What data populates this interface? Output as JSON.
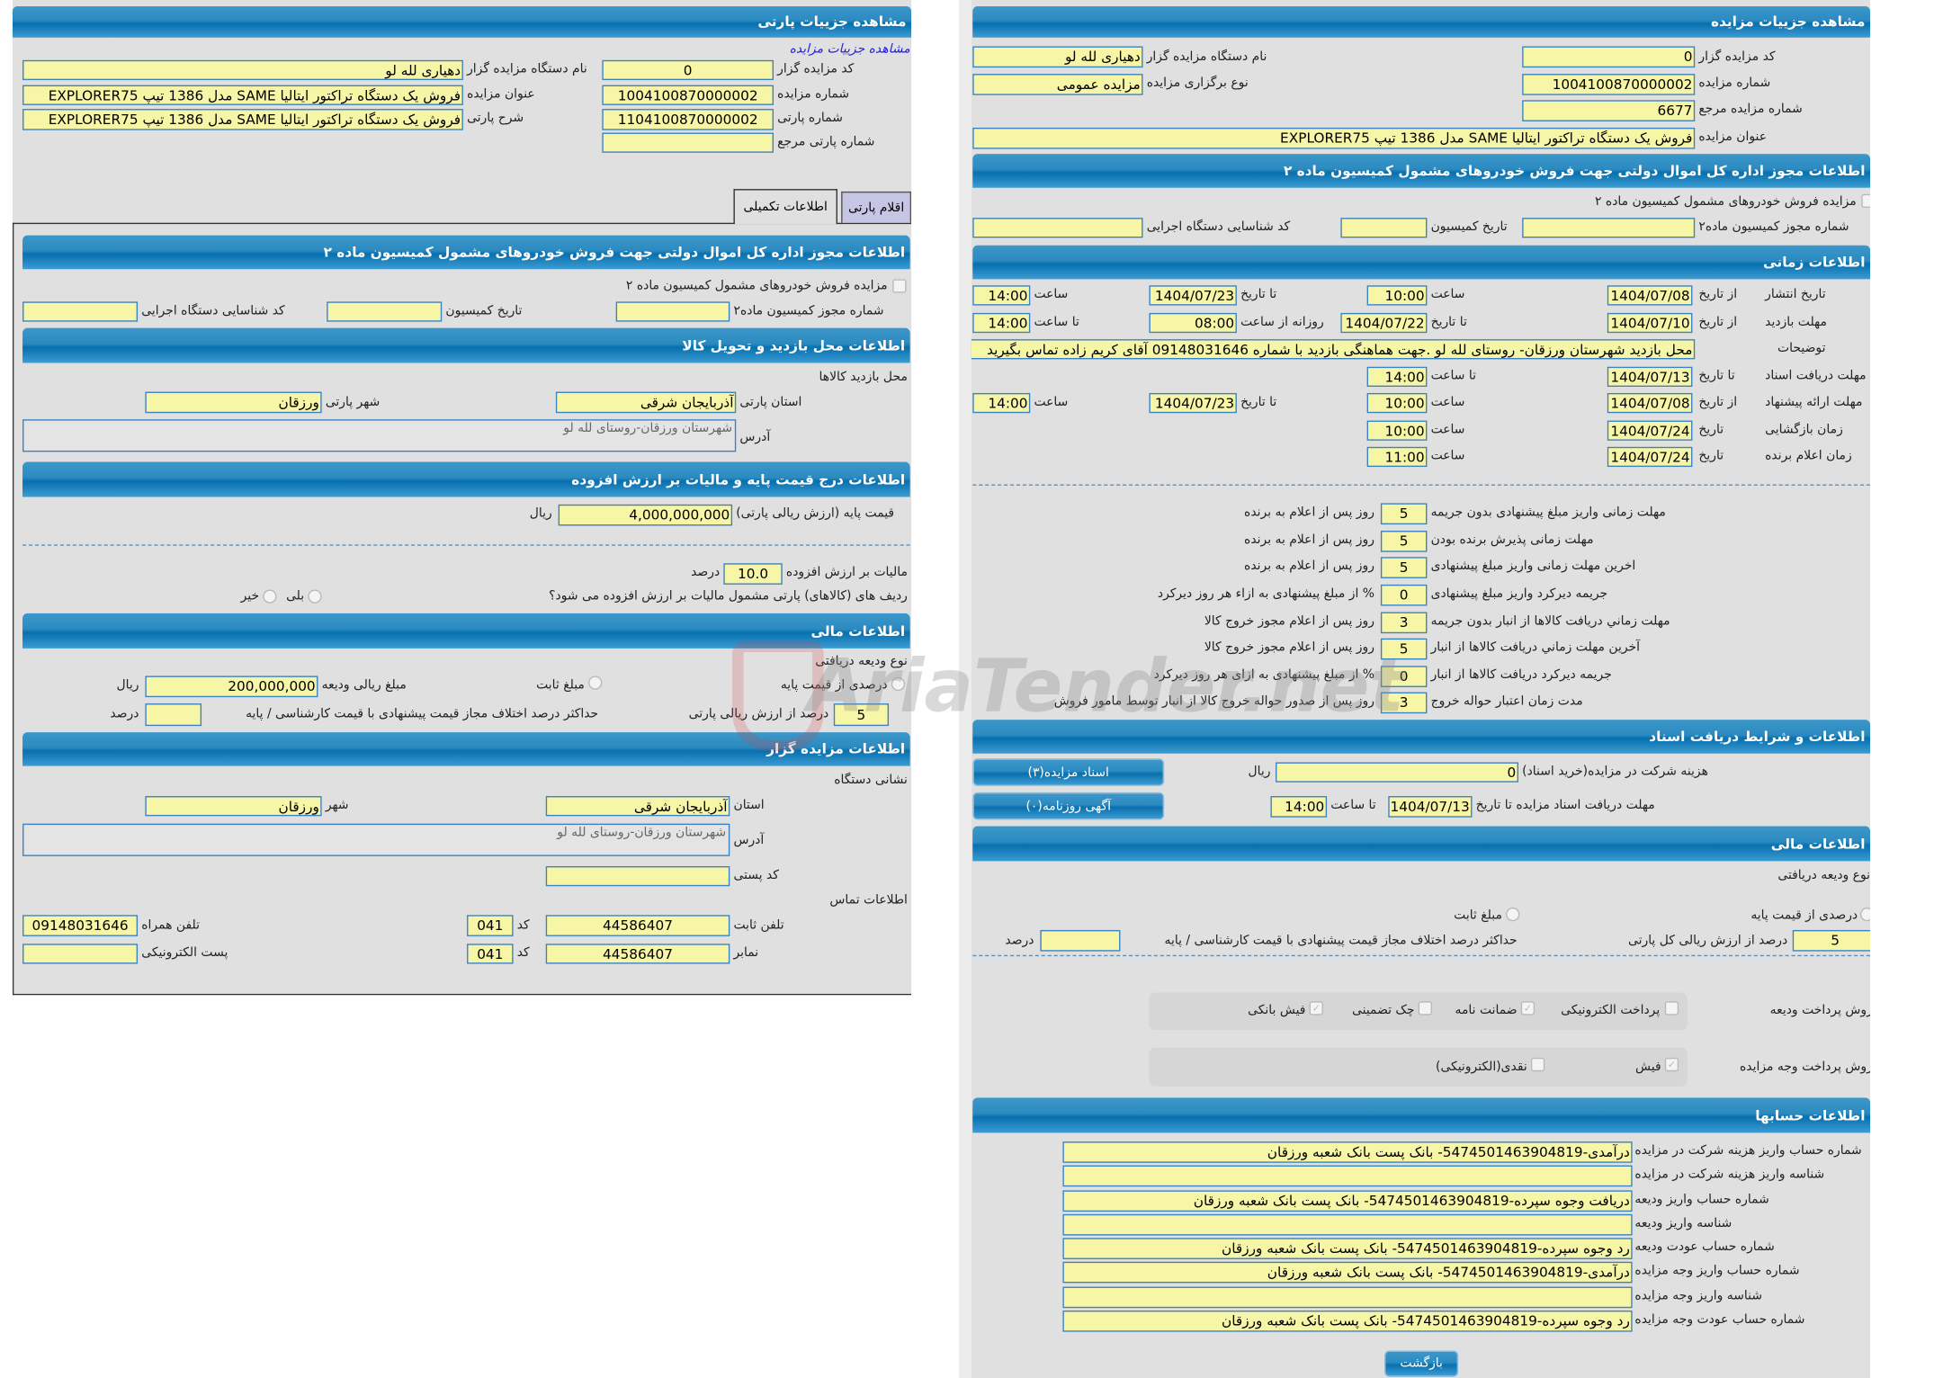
{
  "watermark": "AriaTender.net",
  "colors": {
    "header": "#0770ae",
    "field_bg": "#f7f5a6",
    "field_border": "#3b82c4",
    "panel_bg": "#e1e0e1"
  },
  "party": {
    "title": "مشاهده جزییات پارتی",
    "auction_link": "مشاهده جزییات مزایده",
    "f": {
      "code_label": "کد مزایده گزار",
      "code": "0",
      "org_label": "نام دستگاه مزایده گزار",
      "org": "دهیاری لله لو",
      "auction_no_label": "شماره مزایده",
      "auction_no": "1004100870000002",
      "title_label": "عنوان مزایده",
      "title": "فروش یک دستگاه تراکتور ایتالیا SAME مدل 1386 تیپ EXPLORER75",
      "party_no_label": "شماره پارتی",
      "party_no": "1104100870000002",
      "desc_label": "شرح پارتی",
      "desc": "فروش یک دستگاه تراکتور ایتالیا SAME مدل 1386 تیپ EXPLORER75",
      "ref_label": "شماره پارتی مرجع",
      "ref": ""
    },
    "tabs": [
      {
        "label": "اقلام پارتی",
        "active": false
      },
      {
        "label": "اطلاعات تکمیلی",
        "active": true
      }
    ],
    "permit": {
      "title": "اطلاعات مجوز اداره کل اموال دولتی جهت فروش خودروهای مشمول کمیسیون ماده ۲",
      "checkbox_label": "مزایده فروش خودروهای مشمول کمیسیون ماده ۲",
      "permit_no_label": "شماره مجوز کمیسیون ماده۲",
      "permit_no": "",
      "date_label": "تاریخ کمیسیون",
      "date": "",
      "org_id_label": "کد شناسایی دستگاه اجرایی",
      "org_id": ""
    },
    "visit": {
      "title": "اطلاعات محل بازدید و تحویل کالا",
      "place_label": "محل بازدید کالاها",
      "province_label": "استان پارتی",
      "province": "آذربایجان شرقی",
      "city_label": "شهر پارتی",
      "city": "ورزقان",
      "address_label": "آدرس",
      "address": "شهرستان ورزقان-روستای لله لو"
    },
    "price": {
      "title": "اطلاعات درج قیمت پایه و مالیات بر ارزش افزوده",
      "base_label": "قیمت پایه (ارزش ریالی پارتی)",
      "base": "4,000,000,000",
      "rial": "ریال",
      "vat_label": "مالیات بر ارزش افزوده",
      "vat": "10.0",
      "percent": "درصد",
      "question": "ردیف های (کالاهای) پارتی مشمول مالیات بر ارزش افزوده می شود؟",
      "yes": "بلی",
      "no": "خیر"
    },
    "finance": {
      "title": "اطلاعات مالی",
      "deposit_type_label": "نوع ودیعه دریافتی",
      "opt_percent": "درصدی از قیمت پایه",
      "opt_fixed": "مبلغ ثابت",
      "amount_label": "مبلغ ریالی ودیعه",
      "amount": "200,000,000",
      "rial": "ریال",
      "percent_value": "5",
      "percent_of_label": "درصد از ارزش ریالی پارتی",
      "max_diff_label": "حداکثر درصد اختلاف مجاز قیمت پیشنهادی با قیمت کارشناسی / پایه",
      "max_diff": "",
      "percent": "درصد"
    },
    "auctioneer": {
      "title": "اطلاعات مزایده گزار",
      "address_heading": "نشانی دستگاه",
      "province_label": "استان",
      "province": "آذربایجان شرقی",
      "city_label": "شهر",
      "city": "ورزقان",
      "address_label": "آدرس",
      "address": "شهرستان ورزقان-روستای لله لو",
      "postal_label": "کد پستی",
      "postal": "",
      "contact_heading": "اطلاعات تماس",
      "phone_label": "تلفن ثابت",
      "phone": "44586407",
      "code_label": "کد",
      "phone_code": "041",
      "mobile_label": "تلفن همراه",
      "mobile": "09148031646",
      "fax_label": "نمابر",
      "fax": "44586407",
      "fax_code": "041",
      "email_label": "پست الکترونیکی",
      "email": ""
    }
  },
  "auction": {
    "title": "مشاهده جزییات مزایده",
    "f": {
      "code_label": "کد مزایده گزار",
      "code": "0",
      "org_label": "نام دستگاه مزایده گزار",
      "org": "دهیاری لله لو",
      "no_label": "شماره مزایده",
      "no": "1004100870000002",
      "type_label": "نوع برگزاری مزایده",
      "type": "مزایده عمومی",
      "ref_label": "شماره مزایده مرجع",
      "ref": "6677",
      "title_label": "عنوان مزایده",
      "title": "فروش یک دستگاه تراکتور ایتالیا SAME مدل 1386 تیپ EXPLORER75"
    },
    "permit": {
      "title": "اطلاعات مجوز اداره کل اموال دولتی جهت فروش خودروهای مشمول کمیسیون ماده ۲",
      "checkbox_label": "مزایده فروش خودروهای مشمول کمیسیون ماده ۲",
      "permit_no_label": "شماره مجوز کمیسیون ماده۲",
      "date_label": "تاریخ کمیسیون",
      "org_id_label": "کد شناسایی دستگاه اجرایی"
    },
    "timing": {
      "title": "اطلاعات زمانی",
      "from_date": "از تاریخ",
      "to_date": "تا تاریخ",
      "date": "تاریخ",
      "time": "ساعت",
      "to_time": "تا ساعت",
      "daily_from": "روزانه از ساعت",
      "publish_label": "تاریخ انتشار",
      "publish_from": "1404/07/08",
      "publish_from_time": "10:00",
      "publish_to": "1404/07/23",
      "publish_to_time": "14:00",
      "visit_label": "مهلت بازدید",
      "visit_from": "1404/07/10",
      "visit_to": "1404/07/22",
      "visit_daily_from": "08:00",
      "visit_to_time": "14:00",
      "notes_label": "توضیحات",
      "notes": "محل بازدید شهرستان ورزقان- روستای لله لو .جهت هماهنگی بازدید با شماره 09148031646 آقای کریم زاده تماس بگیرید",
      "docs_label": "مهلت دریافت اسناد",
      "docs_to": "1404/07/13",
      "docs_to_time": "14:00",
      "offer_label": "مهلت ارائه پیشنهاد",
      "offer_from": "1404/07/08",
      "offer_from_time": "10:00",
      "offer_to": "1404/07/23",
      "offer_to_time": "14:00",
      "opening_label": "زمان بازگشایی",
      "opening_date": "1404/07/24",
      "opening_time": "10:00",
      "winner_label": "زمان اعلام برنده",
      "winner_date": "1404/07/24",
      "winner_time": "11:00"
    },
    "deadlines": [
      {
        "label": "مهلت زمانی واریز مبلغ پیشنهادی بدون جریمه",
        "value": "5",
        "suffix": "روز پس از اعلام به برنده"
      },
      {
        "label": "مهلت زمانی پذیرش برنده بودن",
        "value": "5",
        "suffix": "روز پس از اعلام به برنده"
      },
      {
        "label": "اخرین مهلت زمانی واریز مبلغ پیشنهادی",
        "value": "5",
        "suffix": "روز پس از اعلام به برنده"
      },
      {
        "label": "جریمه دیرکرد واریز مبلغ پیشنهادی",
        "value": "0",
        "suffix": "% از مبلغ پیشنهادی به ازاء هر روز دیرکرد"
      },
      {
        "label": "مهلت زماني دريافت کالاها از انبار بدون جريمه",
        "value": "3",
        "suffix": "روز پس از اعلام مجوز خروج کالا"
      },
      {
        "label": "آخرين مهلت زماني دريافت کالاها از انبار",
        "value": "5",
        "suffix": "روز پس از اعلام مجوز خروج کالا"
      },
      {
        "label": "جريمه ديرکرد دريافت کالاها از انبار",
        "value": "0",
        "suffix": "% از مبلغ پیشنهادی به ازای هر روز دیرکرد"
      },
      {
        "label": "مدت زمان اعتبار حواله خروج",
        "value": "3",
        "suffix": "روز پس از صدور حواله خروج کالا از انبار توسط مامور فروش"
      }
    ],
    "docs": {
      "title": "اطلاعات و شرایط دریافت اسناد",
      "docs_button": "اسناد مزایده(۳)",
      "ad_button": "آگهی روزنامه(۰)",
      "fee_label": "هزینه شرکت در مزایده(خرید اسناد)",
      "fee": "0",
      "rial": "ریال",
      "deadline_label": "مهلت دریافت اسناد مزایده تا تاریخ",
      "deadline_date": "1404/07/13",
      "to_time": "تا ساعت",
      "deadline_time": "14:00"
    },
    "finance": {
      "title": "اطلاعات مالی",
      "deposit_type_label": "نوع ودیعه دریافتی",
      "opt_percent": "درصدی از قیمت پایه",
      "opt_fixed": "مبلغ ثابت",
      "percent_value": "5",
      "percent_of_label": "درصد از ارزش ریالی کل پارتی",
      "max_diff_label": "حداکثر درصد اختلاف مجاز قیمت پیشنهادی با قیمت کارشناسی / پایه",
      "percent": "درصد",
      "deposit_method_label": "روش پرداخت ودیعه",
      "deposit_methods": [
        {
          "label": "پرداخت الکترونیکی",
          "checked": false
        },
        {
          "label": "ضمانت نامه",
          "checked": true
        },
        {
          "label": "چک تضمینی",
          "checked": false
        },
        {
          "label": "فیش بانکی",
          "checked": true
        }
      ],
      "payment_method_label": "روش پرداخت وجه مزایده",
      "payment_methods": [
        {
          "label": "فیش",
          "checked": true
        },
        {
          "label": "نقدی(الکترونیکی)",
          "checked": false
        }
      ]
    },
    "accounts": {
      "title": "اطلاعات حسابها",
      "rows": [
        {
          "label": "شماره حساب واریز هزینه شرکت در مزایده",
          "value": "درآمدی-547450146390481​9- بانک پست بانک شعبه ورزقان"
        },
        {
          "label": "شناسه واریز هزینه شرکت در مزایده",
          "value": ""
        },
        {
          "label": "شماره حساب واریز ودیعه",
          "value": "دریافت وجوه سپرده-547450146390481​9- بانک پست بانک شعبه ورزقان"
        },
        {
          "label": "شناسه واریز ودیعه",
          "value": ""
        },
        {
          "label": "شماره حساب عودت ودیعه",
          "value": "رد وجوه سپرده-547450146390481​9- بانک پست بانک شعبه ورزقان"
        },
        {
          "label": "شماره حساب واریز وجه مزایده",
          "value": "درآمدی-547450146390481​9- بانک پست بانک شعبه ورزقان"
        },
        {
          "label": "شناسه واریز وجه مزایده",
          "value": ""
        },
        {
          "label": "شماره حساب عودت وجه مزایده",
          "value": "رد وجوه سپرده-547450146390481​9- بانک پست بانک شعبه ورزقان"
        }
      ]
    },
    "back_button": "بازگشت"
  }
}
